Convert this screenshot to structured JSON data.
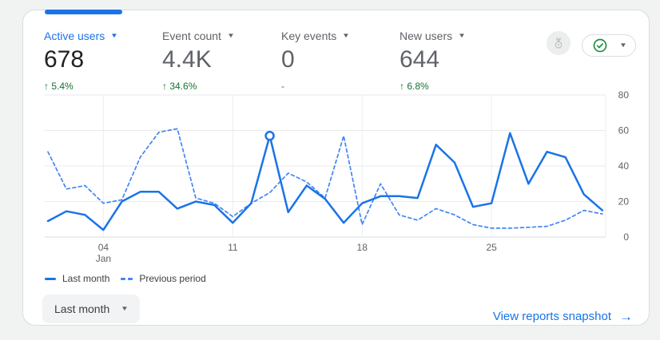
{
  "icons": {
    "caret_down": "▼",
    "medal": "benchmark-medal-icon",
    "status_check": "green-check-circle-icon"
  },
  "colors": {
    "accent_blue": "#1a73e8",
    "dashed_blue": "#4285f4",
    "delta_green": "#137333",
    "grid_line": "#e8eaed",
    "grid_line_v": "#ebedef",
    "axis_line": "#dadce0",
    "axis_text": "#5f6368",
    "page_bg": "#f1f3f2",
    "card_border": "#dadce0",
    "button_bg": "#f1f3f4",
    "check_green": "#1e8e3e"
  },
  "metrics": [
    {
      "label": "Active users",
      "value": "678",
      "delta": "↑ 5.4%",
      "active": true,
      "delta_muted": false
    },
    {
      "label": "Event count",
      "value": "4.4K",
      "delta": "↑ 34.6%",
      "active": false,
      "delta_muted": false
    },
    {
      "label": "Key events",
      "value": "0",
      "delta": "-",
      "active": false,
      "delta_muted": true
    },
    {
      "label": "New users",
      "value": "644",
      "delta": "↑ 6.8%",
      "active": false,
      "delta_muted": false
    }
  ],
  "chart_data": {
    "type": "line",
    "x_tick_labels": [
      "04",
      "11",
      "18",
      "25"
    ],
    "x_tick_days": [
      4,
      11,
      18,
      25
    ],
    "x_sub_label": "Jan",
    "x_days": 31,
    "ylim": [
      0,
      80
    ],
    "y_ticks": [
      0,
      20,
      40,
      60,
      80
    ],
    "grid": true,
    "legend_position": "bottom-left",
    "series": [
      {
        "name": "Last month",
        "style": "solid",
        "color": "#1a73e8",
        "values": [
          9,
          14.5,
          12.5,
          4,
          20,
          25.5,
          25.5,
          16,
          20,
          18,
          8,
          19,
          57,
          14,
          29,
          21.5,
          8,
          19,
          23,
          23,
          22,
          52,
          42,
          17,
          19,
          58.5,
          30,
          48,
          45,
          24,
          15
        ]
      },
      {
        "name": "Previous period",
        "style": "dashed",
        "color": "#4285f4",
        "values": [
          48,
          27,
          29,
          19,
          21,
          45,
          59,
          61,
          22,
          19,
          11.5,
          19,
          25,
          36,
          31,
          22,
          57,
          7,
          30,
          12.5,
          9.5,
          16,
          12.5,
          7,
          5,
          5,
          5.5,
          6,
          9.5,
          15,
          13
        ]
      }
    ],
    "highlight": {
      "series": 0,
      "index": 12,
      "value": 57
    }
  },
  "legend": [
    {
      "label": "Last month",
      "style": "solid"
    },
    {
      "label": "Previous period",
      "style": "dashed"
    }
  ],
  "controls": {
    "date_range_label": "Last month",
    "snapshot_link_label": "View reports snapshot",
    "snapshot_link_arrow": "→"
  }
}
